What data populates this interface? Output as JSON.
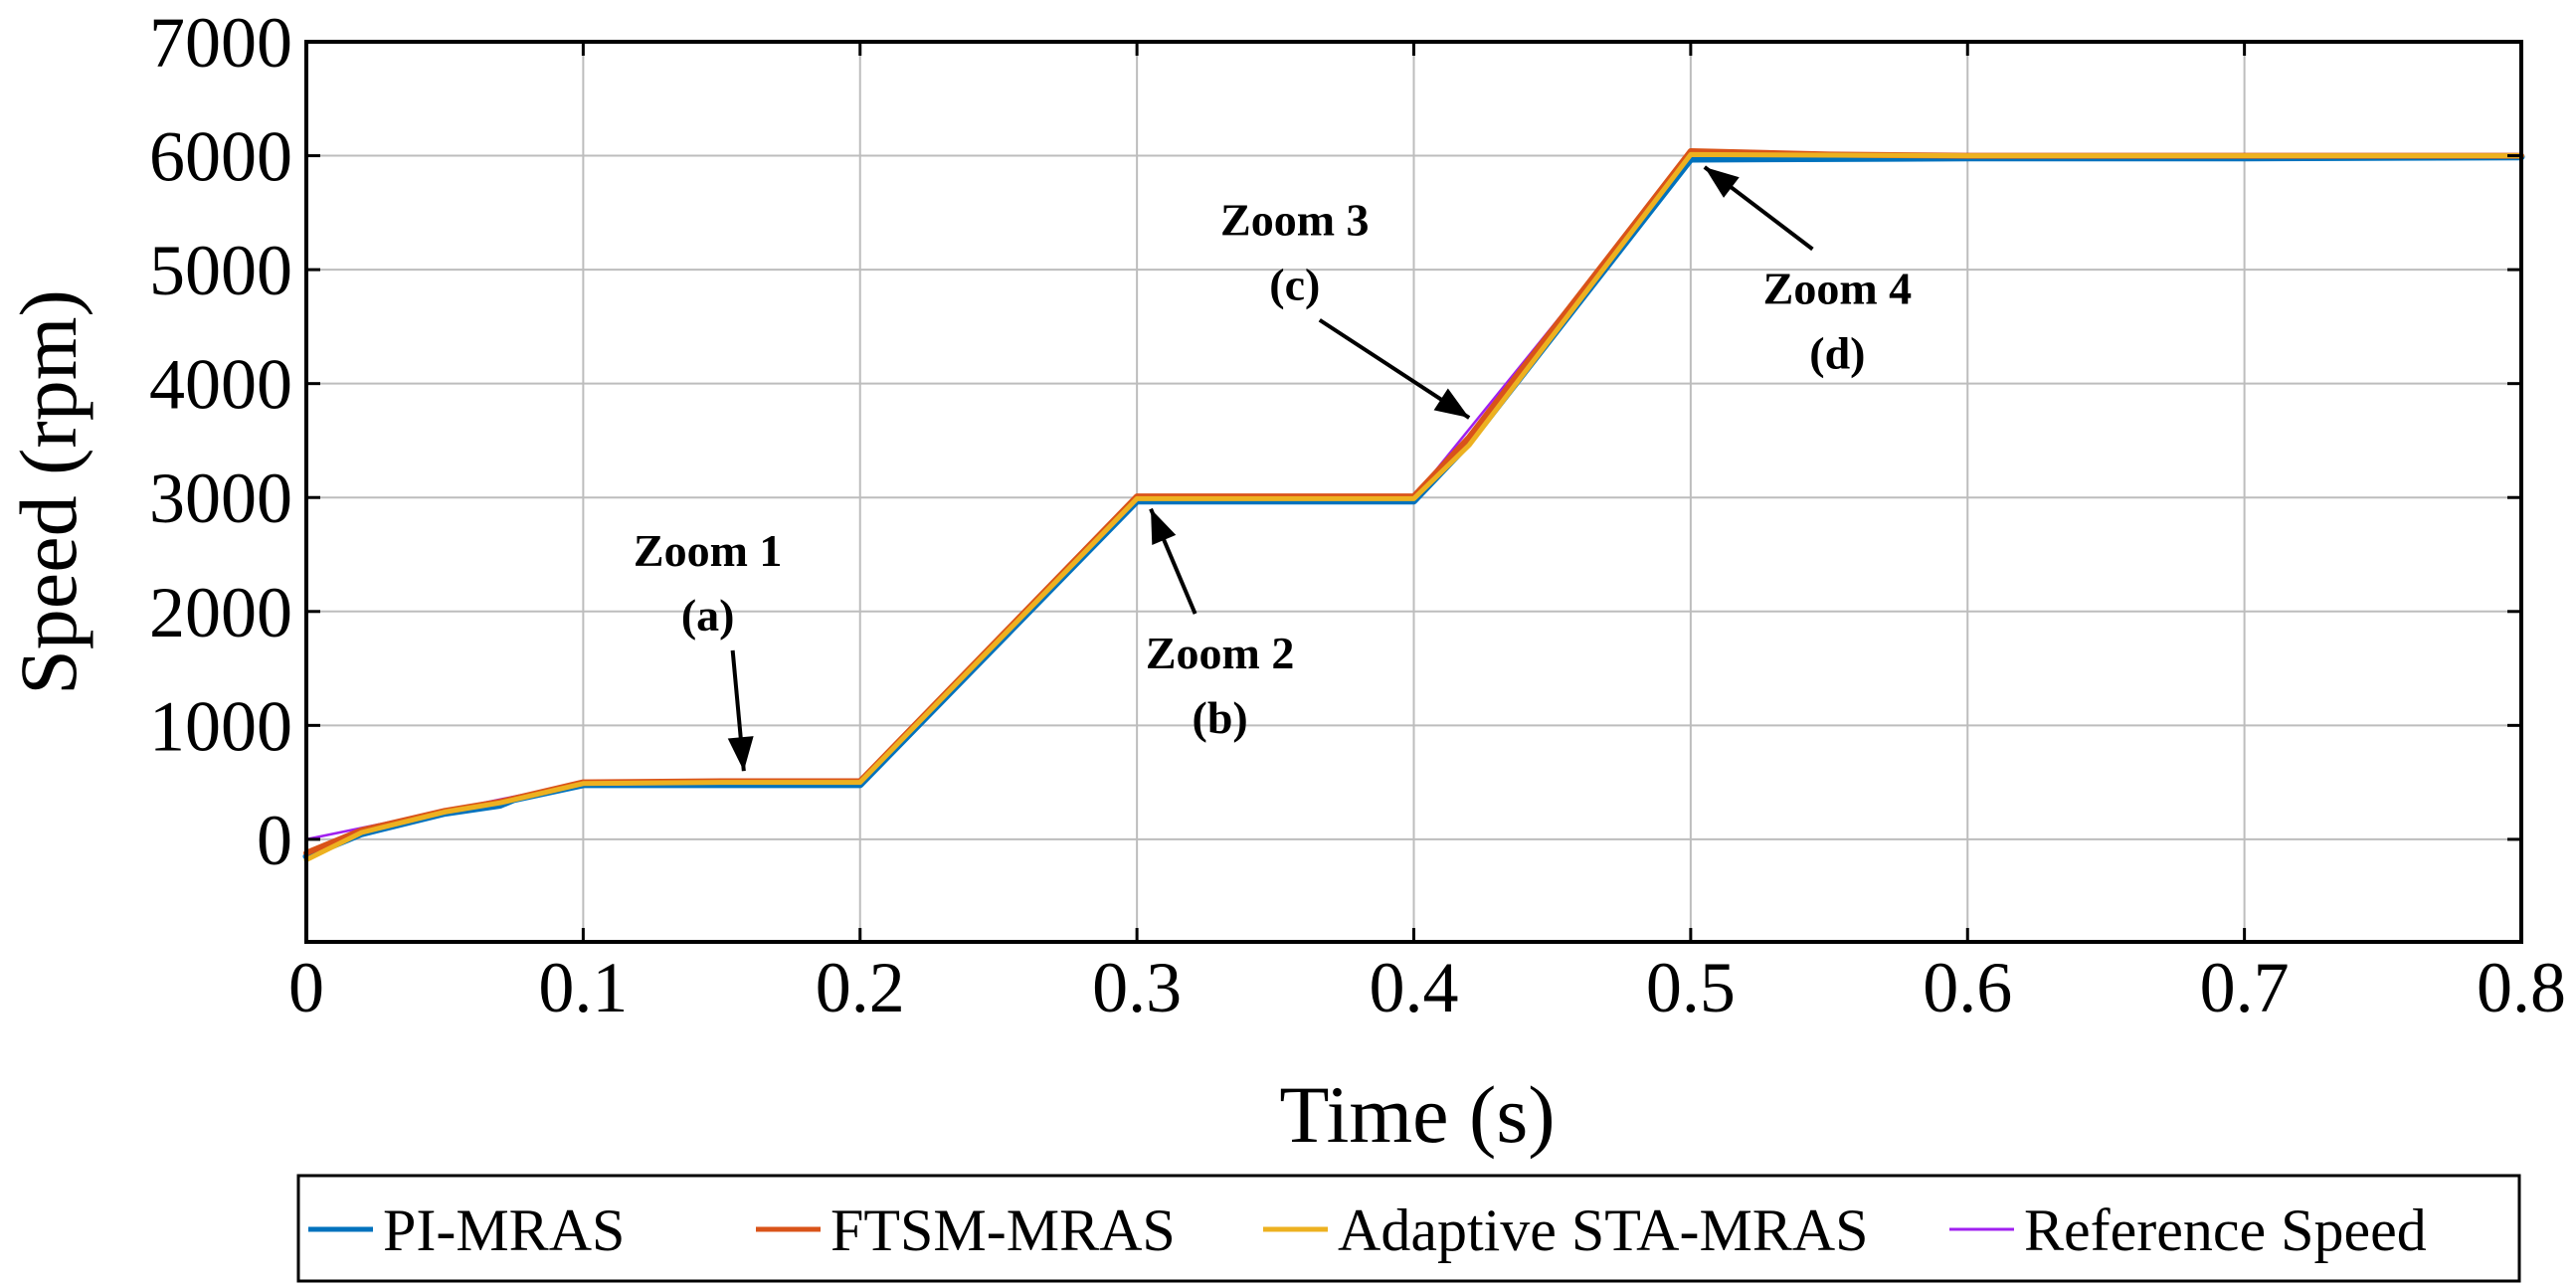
{
  "chart_data": {
    "type": "line",
    "title": "",
    "xlabel": "Time (s)",
    "ylabel": "Speed (rpm)",
    "xlim": [
      0,
      0.8
    ],
    "ylim": [
      -900,
      7000
    ],
    "xticks": [
      0,
      0.1,
      0.2,
      0.3,
      0.4,
      0.5,
      0.6,
      0.7,
      0.8
    ],
    "xtick_labels": [
      "0",
      "0.1",
      "0.2",
      "0.3",
      "0.4",
      "0.5",
      "0.6",
      "0.7",
      "0.8"
    ],
    "yticks": [
      0,
      1000,
      2000,
      3000,
      4000,
      5000,
      6000,
      7000
    ],
    "ytick_labels": [
      "0",
      "1000",
      "2000",
      "3000",
      "4000",
      "5000",
      "6000",
      "7000"
    ],
    "grid": true,
    "legend_position": "bottom",
    "series": [
      {
        "name": "PI-MRAS",
        "color": "#0072BD",
        "x": [
          0,
          0.02,
          0.05,
          0.07,
          0.075,
          0.1,
          0.15,
          0.2,
          0.3,
          0.35,
          0.4,
          0.42,
          0.5,
          0.6,
          0.7,
          0.8
        ],
        "y": [
          -150,
          50,
          230,
          300,
          350,
          480,
          480,
          480,
          2970,
          2970,
          2970,
          3480,
          5970,
          5980,
          5980,
          5990
        ]
      },
      {
        "name": "FTSM-MRAS",
        "color": "#D95319",
        "x": [
          0,
          0.02,
          0.05,
          0.07,
          0.1,
          0.15,
          0.2,
          0.3,
          0.35,
          0.4,
          0.42,
          0.5,
          0.55,
          0.6,
          0.7,
          0.8
        ],
        "y": [
          -120,
          80,
          250,
          330,
          500,
          510,
          510,
          3010,
          3010,
          3010,
          3530,
          6040,
          6010,
          6000,
          6000,
          6000
        ]
      },
      {
        "name": "Adaptive STA-MRAS",
        "color": "#EDB120",
        "x": [
          0,
          0.02,
          0.05,
          0.07,
          0.1,
          0.15,
          0.2,
          0.3,
          0.35,
          0.4,
          0.42,
          0.5,
          0.6,
          0.7,
          0.8
        ],
        "y": [
          -180,
          60,
          240,
          320,
          490,
          500,
          500,
          2990,
          2990,
          2990,
          3460,
          6010,
          6000,
          6000,
          6000
        ]
      },
      {
        "name": "Reference Speed",
        "color": "#A020F0",
        "x": [
          0,
          0.1,
          0.2,
          0.3,
          0.4,
          0.5,
          0.8
        ],
        "y": [
          0,
          500,
          500,
          3000,
          3000,
          6000,
          6000
        ]
      }
    ],
    "annotations": [
      {
        "lines": [
          "Zoom 1",
          "(a)"
        ],
        "text_x": 0.145,
        "text_y": 2400,
        "arrow_to_x": 0.158,
        "arrow_to_y": 600
      },
      {
        "lines": [
          "Zoom 2",
          "(b)"
        ],
        "text_x": 0.33,
        "text_y": 1500,
        "arrow_to_x": 0.305,
        "arrow_to_y": 2900
      },
      {
        "lines": [
          "Zoom 3",
          "(c)"
        ],
        "text_x": 0.357,
        "text_y": 5300,
        "arrow_to_x": 0.42,
        "arrow_to_y": 3700
      },
      {
        "lines": [
          "Zoom 4",
          "(d)"
        ],
        "text_x": 0.553,
        "text_y": 4700,
        "arrow_to_x": 0.505,
        "arrow_to_y": 5900
      }
    ]
  }
}
